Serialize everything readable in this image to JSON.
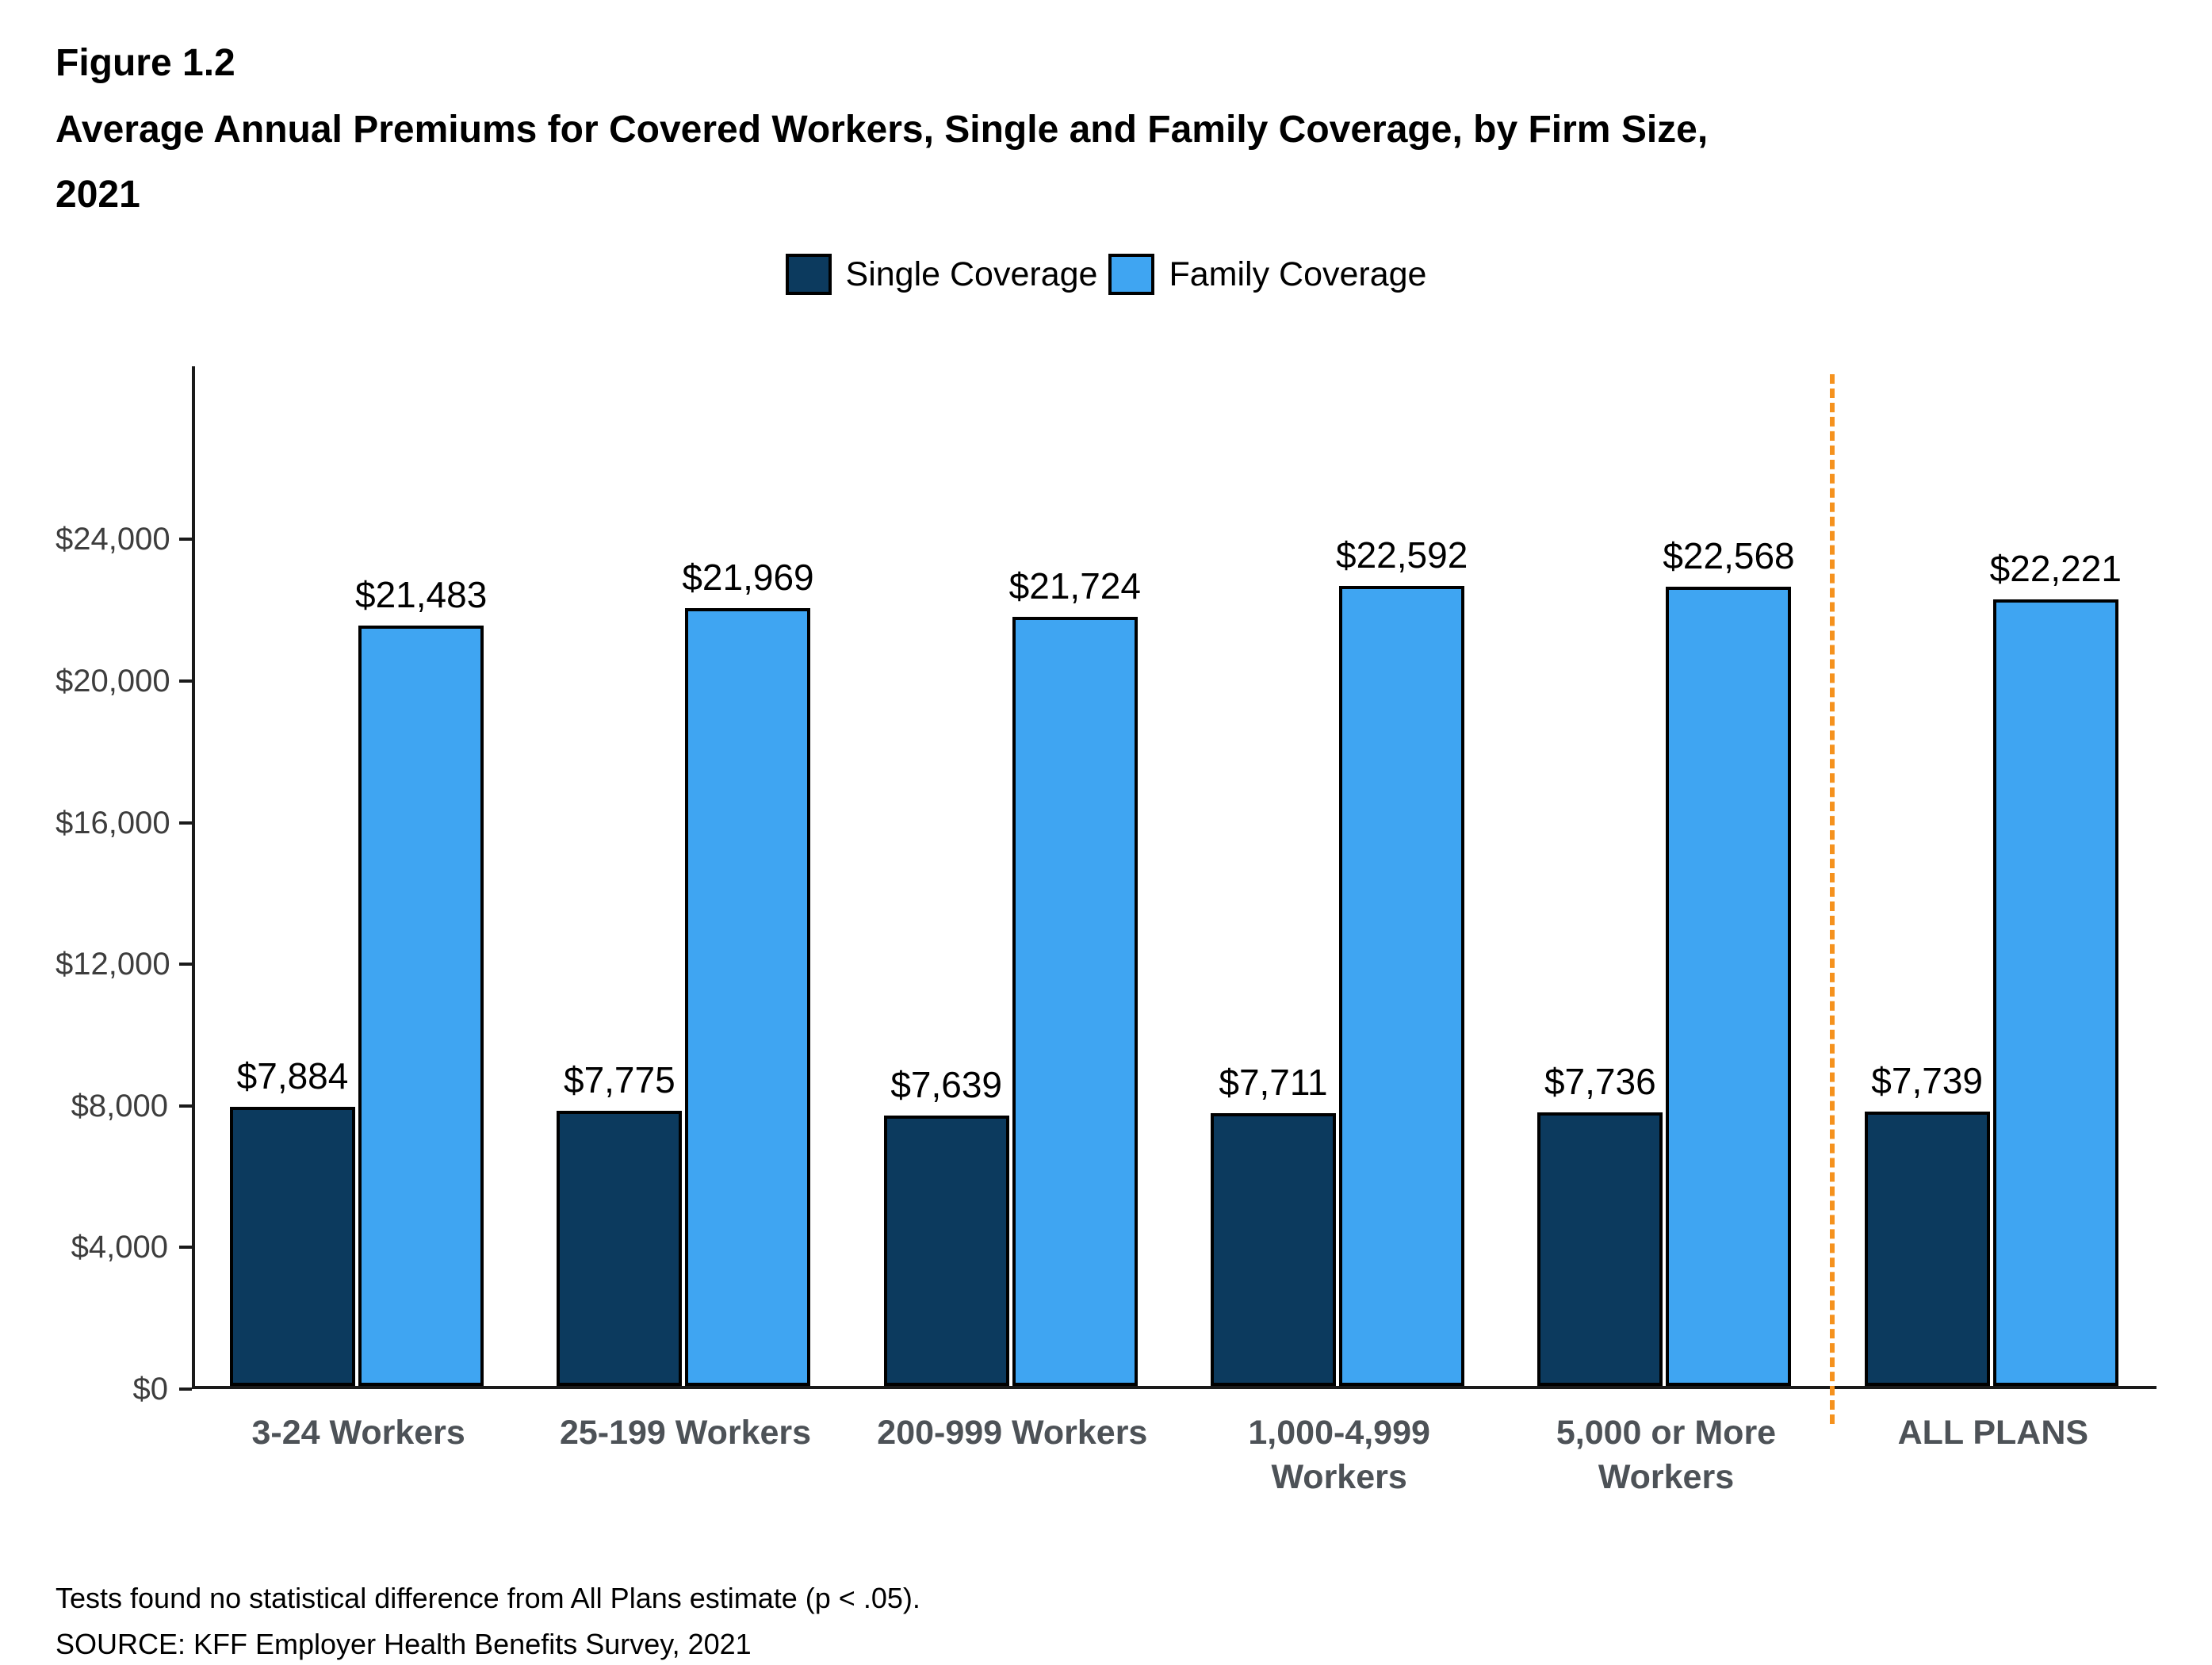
{
  "figure": {
    "label": "Figure 1.2",
    "title_line1": "Average Annual Premiums for Covered Workers, Single and Family Coverage, by Firm Size,",
    "title_line2": "2021"
  },
  "legend": [
    {
      "label": "Single Coverage",
      "color": "#0C3A5E"
    },
    {
      "label": "Family Coverage",
      "color": "#3FA5F2"
    }
  ],
  "chart_data": {
    "type": "bar",
    "title": "Average Annual Premiums for Covered Workers, Single and Family Coverage, by Firm Size, 2021",
    "categories": [
      "3-24 Workers",
      "25-199 Workers",
      "200-999 Workers",
      "1,000-4,999\nWorkers",
      "5,000 or More\nWorkers",
      "ALL PLANS"
    ],
    "series": [
      {
        "name": "Single Coverage",
        "color": "#0C3A5E",
        "values": [
          7884,
          7775,
          7639,
          7711,
          7736,
          7739
        ],
        "labels": [
          "$7,884",
          "$7,775",
          "$7,639",
          "$7,711",
          "$7,736",
          "$7,739"
        ]
      },
      {
        "name": "Family Coverage",
        "color": "#3FA5F2",
        "values": [
          21483,
          21969,
          21724,
          22592,
          22568,
          22221
        ],
        "labels": [
          "$21,483",
          "$21,969",
          "$21,724",
          "$22,592",
          "$22,568",
          "$22,221"
        ]
      }
    ],
    "y_ticks": [
      0,
      4000,
      8000,
      12000,
      16000,
      20000,
      24000
    ],
    "y_tick_labels": [
      "$0",
      "$4,000",
      "$8,000",
      "$12,000",
      "$16,000",
      "$20,000",
      "$24,000"
    ],
    "ylim": [
      0,
      28800
    ],
    "grid": "off",
    "legend_position": "top-center",
    "separator_after_category": 4,
    "separator_color": "#F5921E"
  },
  "notes": {
    "line1": "Tests found no statistical difference from All Plans estimate (p < .05).",
    "line2": "SOURCE: KFF Employer Health Benefits Survey, 2021"
  }
}
